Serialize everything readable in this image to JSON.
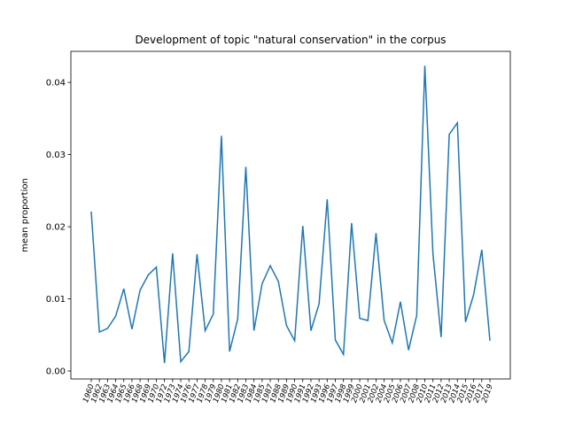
{
  "chart_data": {
    "type": "line",
    "title": "Development of topic \"natural conservation\" in the corpus",
    "y_label": "mean proportion",
    "categories": [
      "1960",
      "1962",
      "1963",
      "1964",
      "1965",
      "1966",
      "1968",
      "1969",
      "1970",
      "1972",
      "1973",
      "1974",
      "1976",
      "1977",
      "1978",
      "1979",
      "1980",
      "1981",
      "1982",
      "1983",
      "1984",
      "1985",
      "1987",
      "1988",
      "1989",
      "1990",
      "1991",
      "1992",
      "1993",
      "1996",
      "1997",
      "1998",
      "1999",
      "2000",
      "2001",
      "2002",
      "2004",
      "2005",
      "2006",
      "2007",
      "2008",
      "2010",
      "2011",
      "2012",
      "2013",
      "2014",
      "2015",
      "2016",
      "2017",
      "2019"
    ],
    "series": [
      {
        "name": "mean proportion",
        "color": "#1f77b4",
        "values": [
          0.0221,
          0.0054,
          0.0059,
          0.0076,
          0.0114,
          0.0058,
          0.0112,
          0.0133,
          0.0144,
          0.0011,
          0.0163,
          0.0013,
          0.0027,
          0.0162,
          0.0056,
          0.0079,
          0.0326,
          0.0027,
          0.0072,
          0.0283,
          0.0056,
          0.0121,
          0.0146,
          0.0124,
          0.0063,
          0.0042,
          0.0201,
          0.0056,
          0.0093,
          0.0238,
          0.0043,
          0.0023,
          0.0205,
          0.0073,
          0.007,
          0.0191,
          0.007,
          0.0039,
          0.0096,
          0.0029,
          0.0077,
          0.0423,
          0.0162,
          0.0047,
          0.0328,
          0.0344,
          0.0068,
          0.0106,
          0.0168,
          0.0042
        ]
      }
    ],
    "ylim": [
      -0.0011,
      0.0443
    ],
    "yticks": [
      {
        "value": 0,
        "label": "0.00"
      },
      {
        "value": 0.01,
        "label": "0.01"
      },
      {
        "value": 0.02,
        "label": "0.02"
      },
      {
        "value": 0.03,
        "label": "0.03"
      },
      {
        "value": 0.04,
        "label": "0.04"
      }
    ],
    "grid": false
  }
}
